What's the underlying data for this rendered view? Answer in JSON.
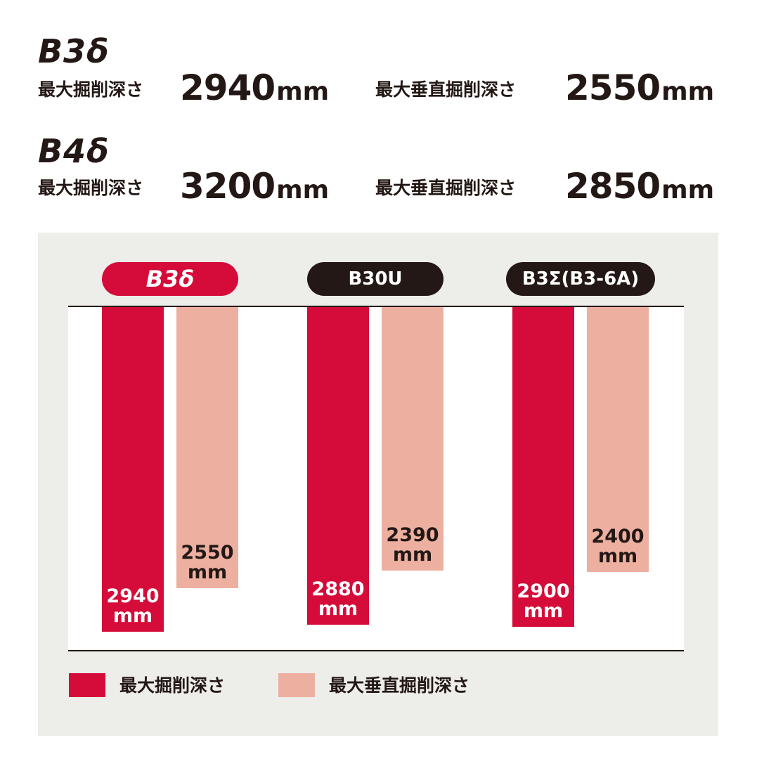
{
  "specs": [
    {
      "model": "B3δ",
      "max_depth_label": "最大掘削深さ",
      "max_depth_value": "2940",
      "vertical_label": "最大垂直掘削深さ",
      "vertical_value": "2550",
      "unit": "mm"
    },
    {
      "model": "B4δ",
      "max_depth_label": "最大掘削深さ",
      "max_depth_value": "3200",
      "vertical_label": "最大垂直掘削深さ",
      "vertical_value": "2850",
      "unit": "mm"
    }
  ],
  "colors": {
    "max_depth": "#d50c39",
    "vertical_depth": "#edb0a0",
    "pill_highlight": "#d50c39",
    "pill_dark": "#231815",
    "panel_bg": "#ededea",
    "text_dark": "#231815"
  },
  "chart_data": {
    "type": "bar",
    "orientation": "vertical-downward",
    "categories": [
      "B3δ",
      "B30U",
      "B3Σ(B3-6A)"
    ],
    "highlighted_category": "B3δ",
    "series": [
      {
        "name": "最大掘削深さ",
        "values": [
          2940,
          2880,
          2900
        ]
      },
      {
        "name": "最大垂直掘削深さ",
        "values": [
          2550,
          2390,
          2400
        ]
      }
    ],
    "value_labels": [
      [
        "2940\nmm",
        "2880\nmm",
        "2900\nmm"
      ],
      [
        "2550\nmm",
        "2390\nmm",
        "2400\nmm"
      ]
    ],
    "unit": "mm",
    "ylim": [
      0,
      3120
    ],
    "legend": {
      "placement": "bottom-left",
      "items": [
        "最大掘削深さ",
        "最大垂直掘削深さ"
      ]
    },
    "grid": false
  }
}
